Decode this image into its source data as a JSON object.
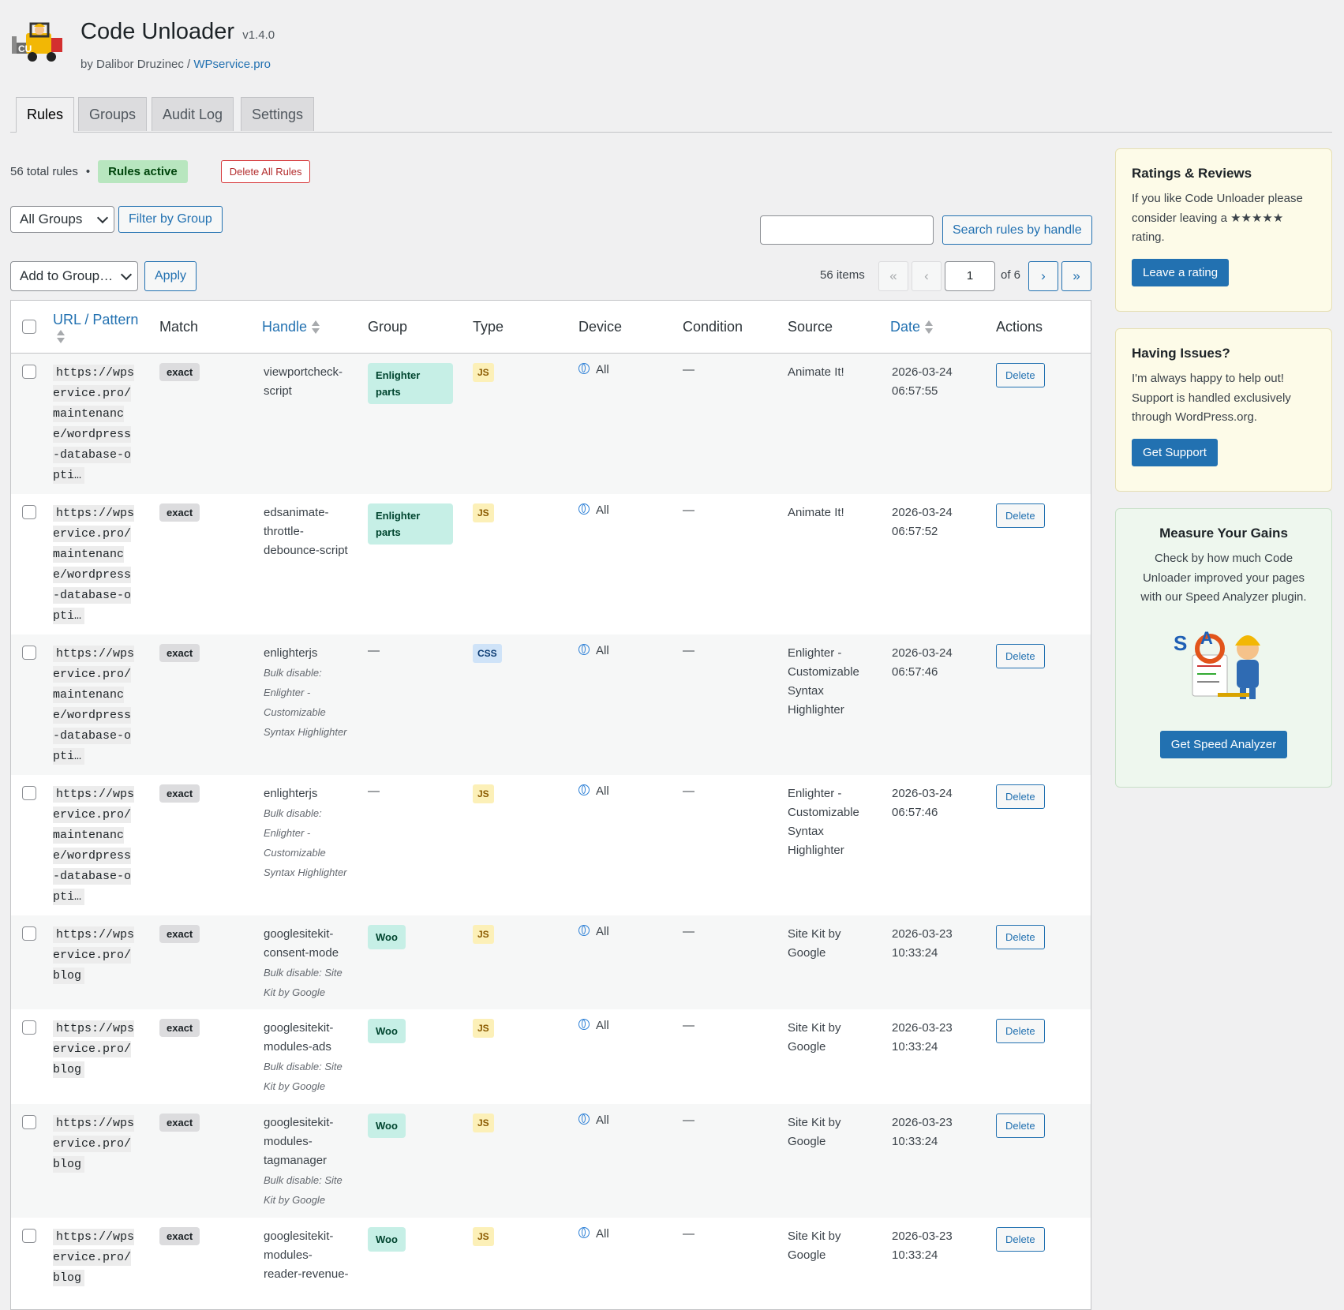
{
  "header": {
    "title": "Code Unloader",
    "version": "v1.4.0",
    "byline_prefix": "by Dalibor Druzinec / ",
    "byline_link": "WPservice.pro"
  },
  "tabs": [
    {
      "label": "Rules",
      "active": true
    },
    {
      "label": "Groups",
      "active": false
    },
    {
      "label": "Audit Log",
      "active": false
    },
    {
      "label": "Settings",
      "active": false
    }
  ],
  "summary": {
    "total": "56 total rules",
    "separator": "•",
    "status": "Rules active",
    "delete_all": "Delete All Rules"
  },
  "filters": {
    "group_select": "All Groups",
    "filter_button": "Filter by Group",
    "search_value": "",
    "search_button": "Search rules by handle",
    "bulk_select": "Add to Group…",
    "apply_button": "Apply"
  },
  "pagination": {
    "items": "56 items",
    "first": "«",
    "prev": "‹",
    "current": "1",
    "of": "of 6",
    "next": "›",
    "last": "»"
  },
  "table": {
    "columns": {
      "url": "URL / Pattern",
      "match": "Match",
      "handle": "Handle",
      "group": "Group",
      "type": "Type",
      "device": "Device",
      "condition": "Condition",
      "source": "Source",
      "date": "Date",
      "actions": "Actions"
    },
    "rows": [
      {
        "url": "https://wpservice.pro/maintenance/wordpress-database-opti…",
        "match": "exact",
        "handle": "viewportcheck-script",
        "note": "",
        "group": "Enlighter parts",
        "type": "JS",
        "device": "All",
        "condition": "—",
        "source": "Animate It!",
        "date": "2026-03-24",
        "time": "06:57:55",
        "action": "Delete"
      },
      {
        "url": "https://wpservice.pro/maintenance/wordpress-database-opti…",
        "match": "exact",
        "handle": "edsanimate-throttle-debounce-script",
        "note": "",
        "group": "Enlighter parts",
        "type": "JS",
        "device": "All",
        "condition": "—",
        "source": "Animate It!",
        "date": "2026-03-24",
        "time": "06:57:52",
        "action": "Delete"
      },
      {
        "url": "https://wpservice.pro/maintenance/wordpress-database-opti…",
        "match": "exact",
        "handle": "enlighterjs",
        "note": "Bulk disable: Enlighter - Customizable Syntax Highlighter",
        "group": "—",
        "type": "CSS",
        "device": "All",
        "condition": "—",
        "source": "Enlighter - Customizable Syntax Highlighter",
        "date": "2026-03-24",
        "time": "06:57:46",
        "action": "Delete"
      },
      {
        "url": "https://wpservice.pro/maintenance/wordpress-database-opti…",
        "match": "exact",
        "handle": "enlighterjs",
        "note": "Bulk disable: Enlighter - Customizable Syntax Highlighter",
        "group": "—",
        "type": "JS",
        "device": "All",
        "condition": "—",
        "source": "Enlighter - Customizable Syntax Highlighter",
        "date": "2026-03-24",
        "time": "06:57:46",
        "action": "Delete"
      },
      {
        "url": "https://wpservice.pro/blog",
        "match": "exact",
        "handle": "googlesitekit-consent-mode",
        "note": "Bulk disable: Site Kit by Google",
        "group": "Woo",
        "type": "JS",
        "device": "All",
        "condition": "—",
        "source": "Site Kit by Google",
        "date": "2026-03-23",
        "time": "10:33:24",
        "action": "Delete"
      },
      {
        "url": "https://wpservice.pro/blog",
        "match": "exact",
        "handle": "googlesitekit-modules-ads",
        "note": "Bulk disable: Site Kit by Google",
        "group": "Woo",
        "type": "JS",
        "device": "All",
        "condition": "—",
        "source": "Site Kit by Google",
        "date": "2026-03-23",
        "time": "10:33:24",
        "action": "Delete"
      },
      {
        "url": "https://wpservice.pro/blog",
        "match": "exact",
        "handle": "googlesitekit-modules-tagmanager",
        "note": "Bulk disable: Site Kit by Google",
        "group": "Woo",
        "type": "JS",
        "device": "All",
        "condition": "—",
        "source": "Site Kit by Google",
        "date": "2026-03-23",
        "time": "10:33:24",
        "action": "Delete"
      },
      {
        "url": "https://wpservice.pro/blog",
        "match": "exact",
        "handle": "googlesitekit-modules-reader-revenue-",
        "note": "",
        "group": "Woo",
        "type": "JS",
        "device": "All",
        "condition": "—",
        "source": "Site Kit by Google",
        "date": "2026-03-23",
        "time": "10:33:24",
        "action": "Delete"
      }
    ]
  },
  "sidebar": {
    "ratings": {
      "title": "Ratings & Reviews",
      "text": "If you like Code Unloader please consider leaving a ★★★★★ rating.",
      "button": "Leave a rating"
    },
    "issues": {
      "title": "Having Issues?",
      "text": "I'm always happy to help out! Support is handled exclusively through WordPress.org.",
      "button": "Get Support"
    },
    "gains": {
      "title": "Measure Your Gains",
      "text": "Check by how much Code Unloader improved your pages with our Speed Analyzer plugin.",
      "button": "Get Speed Analyzer"
    }
  },
  "colors": {
    "accent": "#2271b1",
    "danger": "#d63638",
    "status_active_bg": "#b8e6bf",
    "group_pill_bg": "#c6efe6",
    "js_pill_bg": "#fcf0b8",
    "css_pill_bg": "#cfe3f8"
  }
}
